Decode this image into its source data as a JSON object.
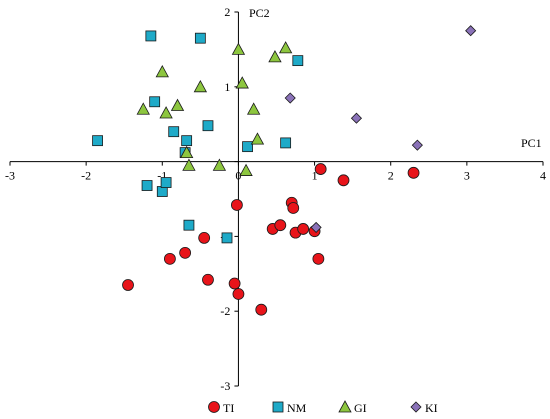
{
  "chart_data": {
    "type": "scatter",
    "xlabel": "PC1",
    "ylabel": "PC2",
    "xlim": [
      -3,
      4
    ],
    "ylim": [
      -3,
      2
    ],
    "xticks": [
      -3,
      -2,
      -1,
      0,
      1,
      2,
      3,
      4
    ],
    "yticks": [
      -3,
      -2,
      -1,
      0,
      1,
      2
    ],
    "grid": false,
    "legend_position": "bottom-center",
    "series": [
      {
        "name": "TI",
        "marker": "circle",
        "color": "#e8141a",
        "x": [
          -1.45,
          -0.9,
          -0.7,
          -0.45,
          -0.4,
          -0.05,
          -0.02,
          0.0,
          0.3,
          0.45,
          0.55,
          0.7,
          0.75,
          0.72,
          0.85,
          1.0,
          1.05,
          1.08,
          1.38,
          2.3
        ],
        "y": [
          -1.65,
          -1.3,
          -1.22,
          -1.02,
          -1.58,
          -1.63,
          -0.58,
          -1.77,
          -1.98,
          -0.9,
          -0.85,
          -0.55,
          -0.95,
          -0.62,
          -0.9,
          -0.93,
          -1.3,
          -0.1,
          -0.25,
          -0.15
        ]
      },
      {
        "name": "NM",
        "marker": "square",
        "color": "#1eaac8",
        "x": [
          -1.85,
          -1.2,
          -1.15,
          -1.1,
          -1.0,
          -0.95,
          -0.85,
          -0.7,
          -0.68,
          -0.65,
          -0.5,
          -0.4,
          -0.15,
          0.12,
          0.62,
          0.78
        ],
        "y": [
          0.28,
          -0.32,
          1.68,
          0.8,
          -0.4,
          -0.28,
          0.4,
          0.12,
          0.28,
          -0.85,
          1.65,
          0.48,
          -1.02,
          0.2,
          0.25,
          1.35
        ]
      },
      {
        "name": "GI",
        "marker": "triangle",
        "color": "#8dc63f",
        "x": [
          -1.25,
          -1.0,
          -0.95,
          -0.8,
          -0.68,
          -0.65,
          -0.5,
          -0.25,
          0.0,
          0.05,
          0.1,
          0.2,
          0.25,
          0.48,
          0.62
        ],
        "y": [
          0.7,
          1.2,
          0.65,
          0.75,
          0.12,
          -0.05,
          1.0,
          -0.05,
          1.5,
          1.05,
          -0.12,
          0.7,
          0.3,
          1.4,
          1.52
        ]
      },
      {
        "name": "KI",
        "marker": "diamond",
        "color": "#8a72b8",
        "x": [
          0.68,
          1.55,
          2.35,
          3.05,
          1.02
        ],
        "y": [
          0.85,
          0.58,
          0.22,
          1.75,
          -0.88
        ]
      }
    ]
  }
}
